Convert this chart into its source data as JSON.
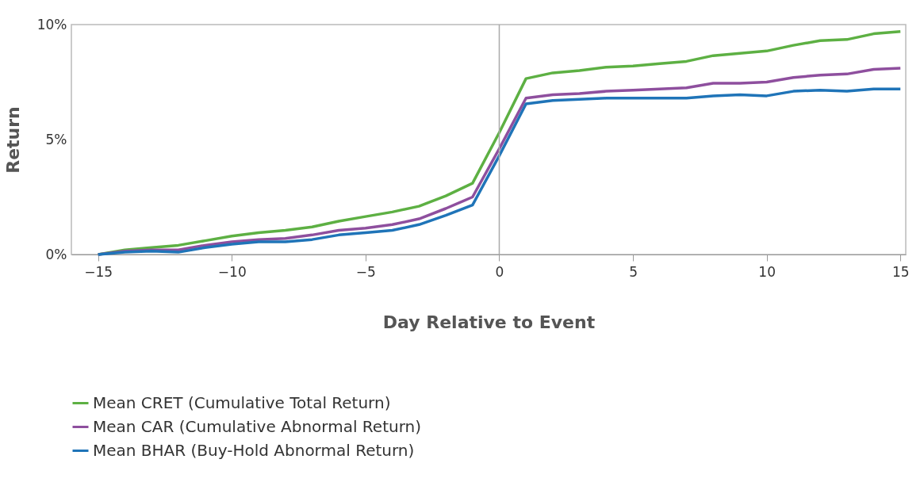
{
  "chart_data": {
    "type": "line",
    "xlabel": "Day Relative to Event",
    "ylabel": "Return",
    "x": [
      -15,
      -14,
      -13,
      -12,
      -11,
      -10,
      -9,
      -8,
      -7,
      -6,
      -5,
      -4,
      -3,
      -2,
      -1,
      0,
      1,
      2,
      3,
      4,
      5,
      6,
      7,
      8,
      9,
      10,
      11,
      12,
      13,
      14,
      15
    ],
    "series": [
      {
        "name": "Mean CRET (Cumulative Total Return)",
        "color": "#5db043",
        "values": [
          0,
          0.2,
          0.3,
          0.4,
          0.6,
          0.8,
          0.95,
          1.05,
          1.2,
          1.45,
          1.65,
          1.85,
          2.1,
          2.55,
          3.1,
          5.3,
          7.65,
          7.9,
          8.0,
          8.15,
          8.2,
          8.3,
          8.4,
          8.65,
          8.75,
          8.85,
          9.1,
          9.3,
          9.35,
          9.6,
          9.7
        ]
      },
      {
        "name": "Mean CAR (Cumulative Abnormal Return)",
        "color": "#8e4f9e",
        "values": [
          0,
          0.15,
          0.2,
          0.2,
          0.4,
          0.55,
          0.65,
          0.7,
          0.85,
          1.05,
          1.15,
          1.3,
          1.55,
          2.0,
          2.5,
          4.6,
          6.8,
          6.95,
          7.0,
          7.1,
          7.15,
          7.2,
          7.25,
          7.45,
          7.45,
          7.5,
          7.7,
          7.8,
          7.85,
          8.05,
          8.1
        ]
      },
      {
        "name": "Mean BHAR (Buy-Hold Abnormal Return)",
        "color": "#1f74b8",
        "values": [
          0,
          0.1,
          0.15,
          0.1,
          0.3,
          0.45,
          0.55,
          0.55,
          0.65,
          0.85,
          0.95,
          1.05,
          1.3,
          1.7,
          2.15,
          4.3,
          6.55,
          6.7,
          6.75,
          6.8,
          6.8,
          6.8,
          6.8,
          6.9,
          6.95,
          6.9,
          7.1,
          7.15,
          7.1,
          7.2,
          7.2
        ]
      }
    ],
    "xlim": [
      -16,
      15.2
    ],
    "ylim": [
      0,
      10
    ],
    "xticks": [
      {
        "value": -15,
        "label": "−15"
      },
      {
        "value": -10,
        "label": "−10"
      },
      {
        "value": -5,
        "label": "−5"
      },
      0,
      5,
      10,
      15
    ],
    "yticks": [
      {
        "value": 0,
        "label": "0%"
      },
      {
        "value": 5,
        "label": "5%"
      },
      {
        "value": 10,
        "label": "10%"
      }
    ],
    "ref_lines": [
      {
        "axis": "x",
        "value": 0,
        "color": "#aaaaaa"
      }
    ],
    "grid": false,
    "legend": "bottom",
    "marker": "none",
    "line_style": "solid"
  }
}
